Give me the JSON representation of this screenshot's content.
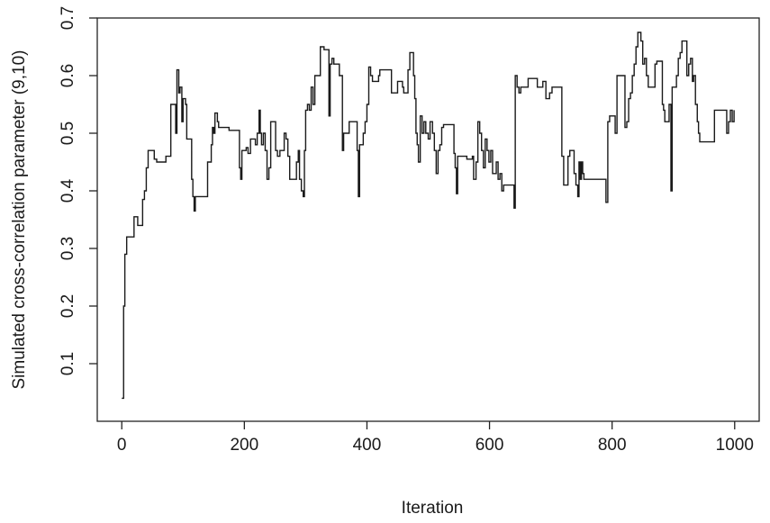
{
  "chart_data": {
    "type": "line",
    "title": "",
    "xlabel": "Iteration",
    "ylabel": "Simulated cross-correlation parameter (9,10)",
    "xlim": [
      -40,
      1040
    ],
    "ylim": [
      0.0,
      0.7
    ],
    "xticks": [
      0,
      200,
      400,
      600,
      800,
      1000
    ],
    "yticks": [
      0.1,
      0.2,
      0.3,
      0.4,
      0.5,
      0.6,
      0.7
    ],
    "grid": false,
    "legend": "none",
    "line_color": "#1a1a1a",
    "series": [
      {
        "step": true,
        "points": [
          [
            0,
            0.04
          ],
          [
            3,
            0.2
          ],
          [
            5,
            0.29
          ],
          [
            8,
            0.32
          ],
          [
            18,
            0.32
          ],
          [
            20,
            0.355
          ],
          [
            24,
            0.355
          ],
          [
            26,
            0.34
          ],
          [
            32,
            0.34
          ],
          [
            34,
            0.385
          ],
          [
            37,
            0.4
          ],
          [
            40,
            0.44
          ],
          [
            43,
            0.47
          ],
          [
            50,
            0.47
          ],
          [
            53,
            0.455
          ],
          [
            57,
            0.45
          ],
          [
            70,
            0.45
          ],
          [
            72,
            0.46
          ],
          [
            78,
            0.46
          ],
          [
            80,
            0.55
          ],
          [
            86,
            0.55
          ],
          [
            88,
            0.5
          ],
          [
            90,
            0.61
          ],
          [
            93,
            0.57
          ],
          [
            95,
            0.58
          ],
          [
            98,
            0.52
          ],
          [
            100,
            0.56
          ],
          [
            104,
            0.55
          ],
          [
            106,
            0.49
          ],
          [
            112,
            0.49
          ],
          [
            114,
            0.42
          ],
          [
            116,
            0.39
          ],
          [
            118,
            0.365
          ],
          [
            120,
            0.39
          ],
          [
            138,
            0.39
          ],
          [
            140,
            0.45
          ],
          [
            143,
            0.45
          ],
          [
            146,
            0.48
          ],
          [
            148,
            0.51
          ],
          [
            150,
            0.5
          ],
          [
            152,
            0.535
          ],
          [
            156,
            0.52
          ],
          [
            158,
            0.51
          ],
          [
            170,
            0.51
          ],
          [
            175,
            0.505
          ],
          [
            190,
            0.505
          ],
          [
            192,
            0.44
          ],
          [
            194,
            0.42
          ],
          [
            196,
            0.47
          ],
          [
            200,
            0.47
          ],
          [
            203,
            0.475
          ],
          [
            206,
            0.465
          ],
          [
            210,
            0.49
          ],
          [
            214,
            0.49
          ],
          [
            218,
            0.48
          ],
          [
            221,
            0.5
          ],
          [
            224,
            0.54
          ],
          [
            226,
            0.5
          ],
          [
            228,
            0.48
          ],
          [
            231,
            0.5
          ],
          [
            234,
            0.47
          ],
          [
            237,
            0.42
          ],
          [
            240,
            0.44
          ],
          [
            243,
            0.52
          ],
          [
            248,
            0.52
          ],
          [
            251,
            0.47
          ],
          [
            254,
            0.46
          ],
          [
            258,
            0.47
          ],
          [
            262,
            0.47
          ],
          [
            265,
            0.5
          ],
          [
            268,
            0.49
          ],
          [
            271,
            0.46
          ],
          [
            274,
            0.42
          ],
          [
            282,
            0.42
          ],
          [
            285,
            0.45
          ],
          [
            288,
            0.47
          ],
          [
            290,
            0.42
          ],
          [
            293,
            0.4
          ],
          [
            296,
            0.39
          ],
          [
            298,
            0.47
          ],
          [
            300,
            0.54
          ],
          [
            303,
            0.55
          ],
          [
            306,
            0.54
          ],
          [
            309,
            0.58
          ],
          [
            312,
            0.55
          ],
          [
            315,
            0.6
          ],
          [
            318,
            0.6
          ],
          [
            321,
            0.6
          ],
          [
            324,
            0.65
          ],
          [
            328,
            0.65
          ],
          [
            330,
            0.645
          ],
          [
            337,
            0.645
          ],
          [
            338,
            0.53
          ],
          [
            340,
            0.62
          ],
          [
            343,
            0.63
          ],
          [
            346,
            0.62
          ],
          [
            353,
            0.62
          ],
          [
            355,
            0.6
          ],
          [
            358,
            0.6
          ],
          [
            360,
            0.47
          ],
          [
            362,
            0.5
          ],
          [
            365,
            0.5
          ],
          [
            368,
            0.5
          ],
          [
            371,
            0.52
          ],
          [
            380,
            0.52
          ],
          [
            382,
            0.52
          ],
          [
            384,
            0.47
          ],
          [
            386,
            0.39
          ],
          [
            388,
            0.48
          ],
          [
            391,
            0.48
          ],
          [
            394,
            0.5
          ],
          [
            397,
            0.52
          ],
          [
            400,
            0.55
          ],
          [
            403,
            0.615
          ],
          [
            406,
            0.6
          ],
          [
            409,
            0.59
          ],
          [
            419,
            0.6
          ],
          [
            421,
            0.61
          ],
          [
            438,
            0.61
          ],
          [
            440,
            0.57
          ],
          [
            447,
            0.57
          ],
          [
            450,
            0.59
          ],
          [
            458,
            0.58
          ],
          [
            460,
            0.57
          ],
          [
            465,
            0.57
          ],
          [
            467,
            0.61
          ],
          [
            470,
            0.64
          ],
          [
            474,
            0.64
          ],
          [
            476,
            0.6
          ],
          [
            478,
            0.56
          ],
          [
            480,
            0.5
          ],
          [
            482,
            0.48
          ],
          [
            484,
            0.45
          ],
          [
            487,
            0.53
          ],
          [
            490,
            0.5
          ],
          [
            493,
            0.52
          ],
          [
            496,
            0.5
          ],
          [
            500,
            0.49
          ],
          [
            503,
            0.52
          ],
          [
            507,
            0.5
          ],
          [
            510,
            0.47
          ],
          [
            513,
            0.43
          ],
          [
            516,
            0.47
          ],
          [
            519,
            0.48
          ],
          [
            522,
            0.51
          ],
          [
            525,
            0.515
          ],
          [
            540,
            0.515
          ],
          [
            542,
            0.465
          ],
          [
            544,
            0.44
          ],
          [
            546,
            0.395
          ],
          [
            548,
            0.46
          ],
          [
            560,
            0.46
          ],
          [
            563,
            0.455
          ],
          [
            570,
            0.455
          ],
          [
            572,
            0.46
          ],
          [
            574,
            0.42
          ],
          [
            576,
            0.42
          ],
          [
            578,
            0.45
          ],
          [
            581,
            0.52
          ],
          [
            584,
            0.5
          ],
          [
            587,
            0.47
          ],
          [
            590,
            0.44
          ],
          [
            593,
            0.49
          ],
          [
            596,
            0.47
          ],
          [
            599,
            0.45
          ],
          [
            602,
            0.47
          ],
          [
            605,
            0.43
          ],
          [
            608,
            0.43
          ],
          [
            611,
            0.45
          ],
          [
            614,
            0.42
          ],
          [
            617,
            0.43
          ],
          [
            620,
            0.4
          ],
          [
            623,
            0.41
          ],
          [
            636,
            0.41
          ],
          [
            640,
            0.37
          ],
          [
            642,
            0.6
          ],
          [
            645,
            0.58
          ],
          [
            648,
            0.57
          ],
          [
            651,
            0.58
          ],
          [
            660,
            0.58
          ],
          [
            663,
            0.595
          ],
          [
            676,
            0.595
          ],
          [
            678,
            0.58
          ],
          [
            684,
            0.58
          ],
          [
            687,
            0.59
          ],
          [
            690,
            0.59
          ],
          [
            692,
            0.56
          ],
          [
            694,
            0.56
          ],
          [
            698,
            0.57
          ],
          [
            702,
            0.58
          ],
          [
            716,
            0.58
          ],
          [
            718,
            0.46
          ],
          [
            721,
            0.41
          ],
          [
            725,
            0.41
          ],
          [
            728,
            0.46
          ],
          [
            731,
            0.47
          ],
          [
            735,
            0.47
          ],
          [
            738,
            0.43
          ],
          [
            741,
            0.41
          ],
          [
            744,
            0.39
          ],
          [
            746,
            0.45
          ],
          [
            748,
            0.42
          ],
          [
            750,
            0.45
          ],
          [
            752,
            0.43
          ],
          [
            754,
            0.42
          ],
          [
            788,
            0.42
          ],
          [
            790,
            0.38
          ],
          [
            793,
            0.52
          ],
          [
            796,
            0.53
          ],
          [
            802,
            0.53
          ],
          [
            805,
            0.5
          ],
          [
            808,
            0.6
          ],
          [
            818,
            0.6
          ],
          [
            821,
            0.51
          ],
          [
            824,
            0.52
          ],
          [
            827,
            0.56
          ],
          [
            830,
            0.57
          ],
          [
            833,
            0.6
          ],
          [
            836,
            0.62
          ],
          [
            839,
            0.65
          ],
          [
            842,
            0.675
          ],
          [
            847,
            0.66
          ],
          [
            850,
            0.62
          ],
          [
            853,
            0.63
          ],
          [
            856,
            0.6
          ],
          [
            859,
            0.58
          ],
          [
            862,
            0.58
          ],
          [
            868,
            0.58
          ],
          [
            870,
            0.62
          ],
          [
            873,
            0.625
          ],
          [
            880,
            0.625
          ],
          [
            882,
            0.55
          ],
          [
            884,
            0.54
          ],
          [
            886,
            0.52
          ],
          [
            890,
            0.52
          ],
          [
            893,
            0.55
          ],
          [
            896,
            0.4
          ],
          [
            898,
            0.58
          ],
          [
            903,
            0.58
          ],
          [
            905,
            0.6
          ],
          [
            908,
            0.63
          ],
          [
            911,
            0.64
          ],
          [
            914,
            0.66
          ],
          [
            920,
            0.66
          ],
          [
            922,
            0.6
          ],
          [
            925,
            0.62
          ],
          [
            928,
            0.63
          ],
          [
            931,
            0.59
          ],
          [
            933,
            0.6
          ],
          [
            936,
            0.55
          ],
          [
            939,
            0.52
          ],
          [
            941,
            0.5
          ],
          [
            943,
            0.485
          ],
          [
            965,
            0.485
          ],
          [
            967,
            0.54
          ],
          [
            985,
            0.54
          ],
          [
            987,
            0.5
          ],
          [
            990,
            0.52
          ],
          [
            993,
            0.54
          ],
          [
            996,
            0.52
          ],
          [
            999,
            0.54
          ]
        ]
      }
    ]
  }
}
